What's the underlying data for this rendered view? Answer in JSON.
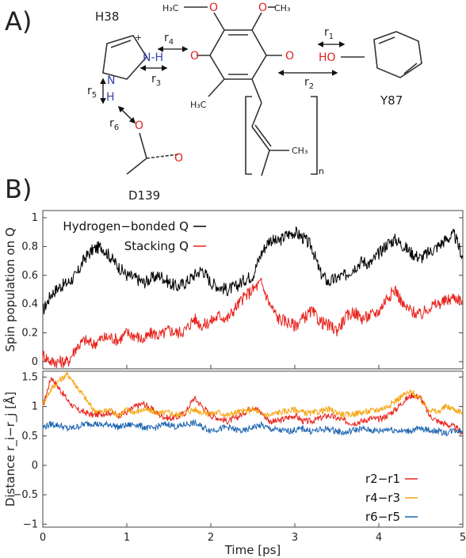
{
  "panels": {
    "a_label": "A)",
    "b_label": "B)"
  },
  "molecule": {
    "res_h38": "H38",
    "res_y87": "Y87",
    "res_d139": "D139",
    "methoxy_left": "H₃C",
    "methoxy_right": "CH₃",
    "o_methoxy": "O",
    "methyl": "H₃C",
    "ch3_tail": "CH₃",
    "repeat_n": "n",
    "o_left": "O",
    "o_right": "O",
    "ho": "HO",
    "nh": "N-H",
    "n": "N",
    "h": "H",
    "o_asp": "O",
    "o_asp2": "O",
    "plus": "+",
    "r1": "r",
    "r1_sub": "1",
    "r2": "r",
    "r2_sub": "2",
    "r3": "r",
    "r3_sub": "3",
    "r4": "r",
    "r4_sub": "4",
    "r5": "r",
    "r5_sub": "5",
    "r6": "r",
    "r6_sub": "6"
  },
  "chart_data": [
    {
      "type": "line",
      "ylabel": "Spin population on Q",
      "xlim": [
        0,
        5
      ],
      "ylim": [
        -0.05,
        1.05
      ],
      "yticks": [
        "0",
        "0.2",
        "0.4",
        "0.6",
        "0.8",
        "1"
      ],
      "legend_placement": "top-left",
      "series": [
        {
          "name": "Hydrogen−bonded Q",
          "color": "#000000",
          "x": [
            0,
            0.1,
            0.2,
            0.3,
            0.4,
            0.5,
            0.6,
            0.7,
            0.8,
            0.9,
            1.0,
            1.1,
            1.2,
            1.3,
            1.4,
            1.5,
            1.6,
            1.7,
            1.8,
            1.9,
            2.0,
            2.1,
            2.2,
            2.3,
            2.4,
            2.5,
            2.6,
            2.7,
            2.8,
            2.9,
            3.0,
            3.1,
            3.2,
            3.3,
            3.4,
            3.5,
            3.6,
            3.7,
            3.8,
            3.9,
            4.0,
            4.1,
            4.2,
            4.3,
            4.4,
            4.5,
            4.6,
            4.7,
            4.8,
            4.9,
            5.0
          ],
          "y": [
            0.35,
            0.47,
            0.52,
            0.55,
            0.6,
            0.72,
            0.78,
            0.8,
            0.73,
            0.66,
            0.6,
            0.58,
            0.55,
            0.58,
            0.6,
            0.55,
            0.52,
            0.55,
            0.6,
            0.64,
            0.55,
            0.52,
            0.5,
            0.52,
            0.57,
            0.6,
            0.75,
            0.85,
            0.83,
            0.88,
            0.9,
            0.86,
            0.8,
            0.62,
            0.55,
            0.58,
            0.6,
            0.65,
            0.7,
            0.68,
            0.75,
            0.82,
            0.85,
            0.8,
            0.75,
            0.72,
            0.76,
            0.8,
            0.85,
            0.88,
            0.72
          ]
        },
        {
          "name": "Stacking Q",
          "color": "#e8231c",
          "x": [
            0,
            0.1,
            0.2,
            0.3,
            0.4,
            0.5,
            0.6,
            0.7,
            0.8,
            0.9,
            1.0,
            1.1,
            1.2,
            1.3,
            1.4,
            1.5,
            1.6,
            1.7,
            1.8,
            1.9,
            2.0,
            2.1,
            2.2,
            2.3,
            2.4,
            2.5,
            2.6,
            2.7,
            2.8,
            2.9,
            3.0,
            3.1,
            3.2,
            3.3,
            3.4,
            3.5,
            3.6,
            3.7,
            3.8,
            3.9,
            4.0,
            4.1,
            4.2,
            4.3,
            4.4,
            4.5,
            4.6,
            4.7,
            4.8,
            4.9,
            5.0
          ],
          "y": [
            0.05,
            0.0,
            0.0,
            0.0,
            0.1,
            0.15,
            0.12,
            0.16,
            0.17,
            0.15,
            0.2,
            0.18,
            0.15,
            0.2,
            0.18,
            0.22,
            0.2,
            0.22,
            0.3,
            0.25,
            0.28,
            0.32,
            0.3,
            0.38,
            0.45,
            0.5,
            0.55,
            0.4,
            0.3,
            0.28,
            0.25,
            0.3,
            0.35,
            0.28,
            0.25,
            0.22,
            0.3,
            0.35,
            0.3,
            0.32,
            0.35,
            0.45,
            0.5,
            0.38,
            0.35,
            0.32,
            0.38,
            0.4,
            0.42,
            0.45,
            0.42
          ]
        }
      ]
    },
    {
      "type": "line",
      "xlabel": "Time [ps]",
      "ylabel": "Distance r_i−r_j [Å]",
      "xlim": [
        0,
        5
      ],
      "ylim": [
        -1.05,
        1.6
      ],
      "xticks": [
        "0",
        "1",
        "2",
        "3",
        "4",
        "5"
      ],
      "yticks": [
        "−1",
        "−0.5",
        "0",
        "0.5",
        "1",
        "1.5"
      ],
      "legend_placement": "bottom-right",
      "series": [
        {
          "name": "r2−r1",
          "color": "#e8231c",
          "x": [
            0,
            0.1,
            0.2,
            0.3,
            0.4,
            0.5,
            0.6,
            0.7,
            0.8,
            0.9,
            1.0,
            1.1,
            1.2,
            1.3,
            1.4,
            1.5,
            1.6,
            1.7,
            1.8,
            1.9,
            2.0,
            2.1,
            2.2,
            2.3,
            2.4,
            2.5,
            2.6,
            2.7,
            2.8,
            2.9,
            3.0,
            3.1,
            3.2,
            3.3,
            3.4,
            3.5,
            3.6,
            3.7,
            3.8,
            3.9,
            4.0,
            4.1,
            4.2,
            4.3,
            4.4,
            4.5,
            4.6,
            4.7,
            4.8,
            4.9,
            5.0
          ],
          "y": [
            1.0,
            1.5,
            1.3,
            1.1,
            0.95,
            0.9,
            0.85,
            0.88,
            0.9,
            0.85,
            0.9,
            1.0,
            1.05,
            0.95,
            0.85,
            0.8,
            0.82,
            0.9,
            1.15,
            1.0,
            0.85,
            0.8,
            0.75,
            0.8,
            0.9,
            1.0,
            0.9,
            0.75,
            0.75,
            0.8,
            0.85,
            0.75,
            0.75,
            0.8,
            0.85,
            0.8,
            0.75,
            0.72,
            0.75,
            0.8,
            0.78,
            0.85,
            0.95,
            1.1,
            1.2,
            1.15,
            0.85,
            0.75,
            0.7,
            0.65,
            0.55
          ]
        },
        {
          "name": "r4−r3",
          "color": "#f5a40e",
          "x": [
            0,
            0.1,
            0.2,
            0.3,
            0.4,
            0.5,
            0.6,
            0.7,
            0.8,
            0.9,
            1.0,
            1.1,
            1.2,
            1.3,
            1.4,
            1.5,
            1.6,
            1.7,
            1.8,
            1.9,
            2.0,
            2.1,
            2.2,
            2.3,
            2.4,
            2.5,
            2.6,
            2.7,
            2.8,
            2.9,
            3.0,
            3.1,
            3.2,
            3.3,
            3.4,
            3.5,
            3.6,
            3.7,
            3.8,
            3.9,
            4.0,
            4.1,
            4.2,
            4.3,
            4.4,
            4.5,
            4.6,
            4.7,
            4.8,
            4.9,
            5.0
          ],
          "y": [
            1.05,
            1.3,
            1.45,
            1.55,
            1.35,
            1.15,
            0.95,
            0.9,
            0.95,
            0.85,
            0.95,
            0.9,
            0.95,
            0.92,
            0.88,
            0.9,
            0.85,
            0.9,
            0.95,
            0.9,
            0.88,
            0.9,
            0.85,
            0.9,
            0.92,
            0.95,
            0.88,
            0.85,
            0.9,
            0.92,
            0.95,
            0.9,
            0.88,
            0.92,
            0.95,
            0.9,
            0.85,
            0.88,
            0.9,
            0.92,
            0.95,
            1.0,
            1.1,
            1.2,
            1.25,
            1.1,
            0.95,
            0.9,
            1.0,
            0.95,
            0.9
          ]
        },
        {
          "name": "r6−r5",
          "color": "#1a63b0",
          "x": [
            0,
            0.1,
            0.2,
            0.3,
            0.4,
            0.5,
            0.6,
            0.7,
            0.8,
            0.9,
            1.0,
            1.1,
            1.2,
            1.3,
            1.4,
            1.5,
            1.6,
            1.7,
            1.8,
            1.9,
            2.0,
            2.1,
            2.2,
            2.3,
            2.4,
            2.5,
            2.6,
            2.7,
            2.8,
            2.9,
            3.0,
            3.1,
            3.2,
            3.3,
            3.4,
            3.5,
            3.6,
            3.7,
            3.8,
            3.9,
            4.0,
            4.1,
            4.2,
            4.3,
            4.4,
            4.5,
            4.6,
            4.7,
            4.8,
            4.9,
            5.0
          ],
          "y": [
            0.65,
            0.7,
            0.68,
            0.62,
            0.65,
            0.7,
            0.72,
            0.68,
            0.7,
            0.65,
            0.68,
            0.7,
            0.65,
            0.62,
            0.68,
            0.7,
            0.65,
            0.7,
            0.72,
            0.65,
            0.6,
            0.62,
            0.65,
            0.6,
            0.58,
            0.65,
            0.68,
            0.62,
            0.6,
            0.58,
            0.6,
            0.62,
            0.58,
            0.6,
            0.62,
            0.58,
            0.55,
            0.6,
            0.62,
            0.6,
            0.58,
            0.62,
            0.6,
            0.58,
            0.6,
            0.62,
            0.6,
            0.58,
            0.55,
            0.6,
            0.58
          ]
        }
      ]
    }
  ]
}
